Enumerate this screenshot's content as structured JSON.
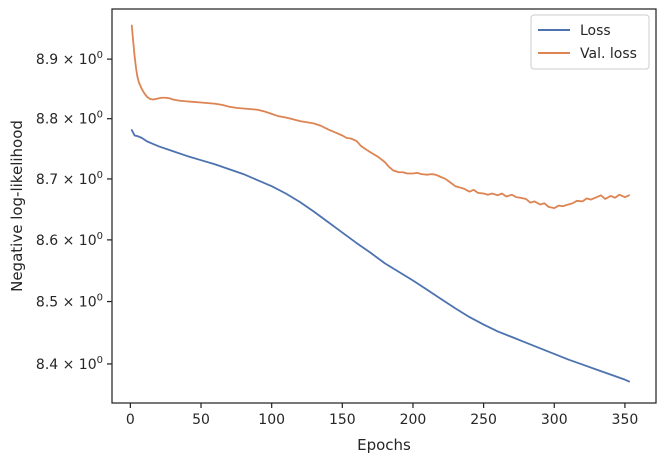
{
  "chart_data": {
    "type": "line",
    "title": "",
    "xlabel": "Epochs",
    "ylabel": "Negative log-likelihood",
    "xlim": [
      -13,
      372
    ],
    "ylim": [
      8.338,
      8.985
    ],
    "yscale": "log",
    "grid": false,
    "legend_position": "top-right",
    "x_ticks": [
      0,
      50,
      100,
      150,
      200,
      250,
      300,
      350
    ],
    "x_tick_labels": [
      "0",
      "50",
      "100",
      "150",
      "200",
      "250",
      "300",
      "350"
    ],
    "y_ticks": [
      8.4,
      8.5,
      8.6,
      8.7,
      8.8,
      8.9
    ],
    "y_tick_labels": [
      "8.4 × 10^0",
      "8.5 × 10^0",
      "8.6 × 10^0",
      "8.7 × 10^0",
      "8.8 × 10^0",
      "8.9 × 10^0"
    ],
    "series": [
      {
        "name": "Loss",
        "color": "#4c72b0",
        "x": [
          1,
          3,
          5,
          8,
          12,
          15,
          20,
          30,
          40,
          50,
          60,
          70,
          80,
          90,
          100,
          110,
          120,
          130,
          140,
          150,
          160,
          170,
          180,
          190,
          200,
          210,
          220,
          230,
          240,
          250,
          260,
          270,
          280,
          290,
          300,
          310,
          320,
          330,
          340,
          350,
          353
        ],
        "values": [
          8.781,
          8.772,
          8.771,
          8.768,
          8.762,
          8.759,
          8.754,
          8.746,
          8.738,
          8.731,
          8.724,
          8.716,
          8.708,
          8.698,
          8.688,
          8.676,
          8.662,
          8.646,
          8.629,
          8.612,
          8.595,
          8.579,
          8.562,
          8.548,
          8.534,
          8.519,
          8.504,
          8.489,
          8.475,
          8.463,
          8.452,
          8.443,
          8.434,
          8.425,
          8.416,
          8.407,
          8.399,
          8.391,
          8.383,
          8.375,
          8.372
        ]
      },
      {
        "name": "Val. loss",
        "color": "#dd8452",
        "x": [
          1,
          2,
          3,
          4,
          5,
          6,
          8,
          10,
          12,
          14,
          16,
          18,
          20,
          22,
          25,
          28,
          30,
          35,
          40,
          45,
          50,
          55,
          60,
          65,
          70,
          75,
          80,
          85,
          90,
          95,
          100,
          105,
          110,
          115,
          120,
          125,
          130,
          135,
          140,
          145,
          150,
          153,
          156,
          160,
          163,
          166,
          170,
          175,
          180,
          183,
          186,
          190,
          193,
          196,
          200,
          203,
          206,
          210,
          213,
          216,
          220,
          223,
          226,
          230,
          233,
          236,
          240,
          243,
          246,
          250,
          253,
          256,
          260,
          263,
          266,
          270,
          273,
          276,
          280,
          283,
          286,
          290,
          293,
          296,
          300,
          303,
          306,
          310,
          313,
          316,
          320,
          323,
          326,
          330,
          333,
          336,
          340,
          343,
          346,
          350,
          353
        ],
        "values": [
          8.957,
          8.93,
          8.905,
          8.885,
          8.87,
          8.861,
          8.85,
          8.842,
          8.836,
          8.833,
          8.832,
          8.833,
          8.834,
          8.835,
          8.835,
          8.834,
          8.832,
          8.83,
          8.829,
          8.828,
          8.827,
          8.826,
          8.825,
          8.823,
          8.82,
          8.818,
          8.817,
          8.816,
          8.815,
          8.812,
          8.808,
          8.804,
          8.802,
          8.799,
          8.796,
          8.794,
          8.792,
          8.788,
          8.782,
          8.777,
          8.772,
          8.768,
          8.767,
          8.763,
          8.755,
          8.75,
          8.744,
          8.737,
          8.728,
          8.72,
          8.714,
          8.711,
          8.711,
          8.709,
          8.709,
          8.71,
          8.708,
          8.707,
          8.708,
          8.707,
          8.703,
          8.7,
          8.695,
          8.688,
          8.686,
          8.684,
          8.679,
          8.682,
          8.677,
          8.676,
          8.674,
          8.676,
          8.673,
          8.676,
          8.671,
          8.674,
          8.67,
          8.669,
          8.667,
          8.661,
          8.663,
          8.658,
          8.66,
          8.654,
          8.652,
          8.656,
          8.655,
          8.658,
          8.66,
          8.664,
          8.663,
          8.668,
          8.666,
          8.67,
          8.673,
          8.667,
          8.672,
          8.669,
          8.674,
          8.67,
          8.673
        ]
      }
    ]
  }
}
